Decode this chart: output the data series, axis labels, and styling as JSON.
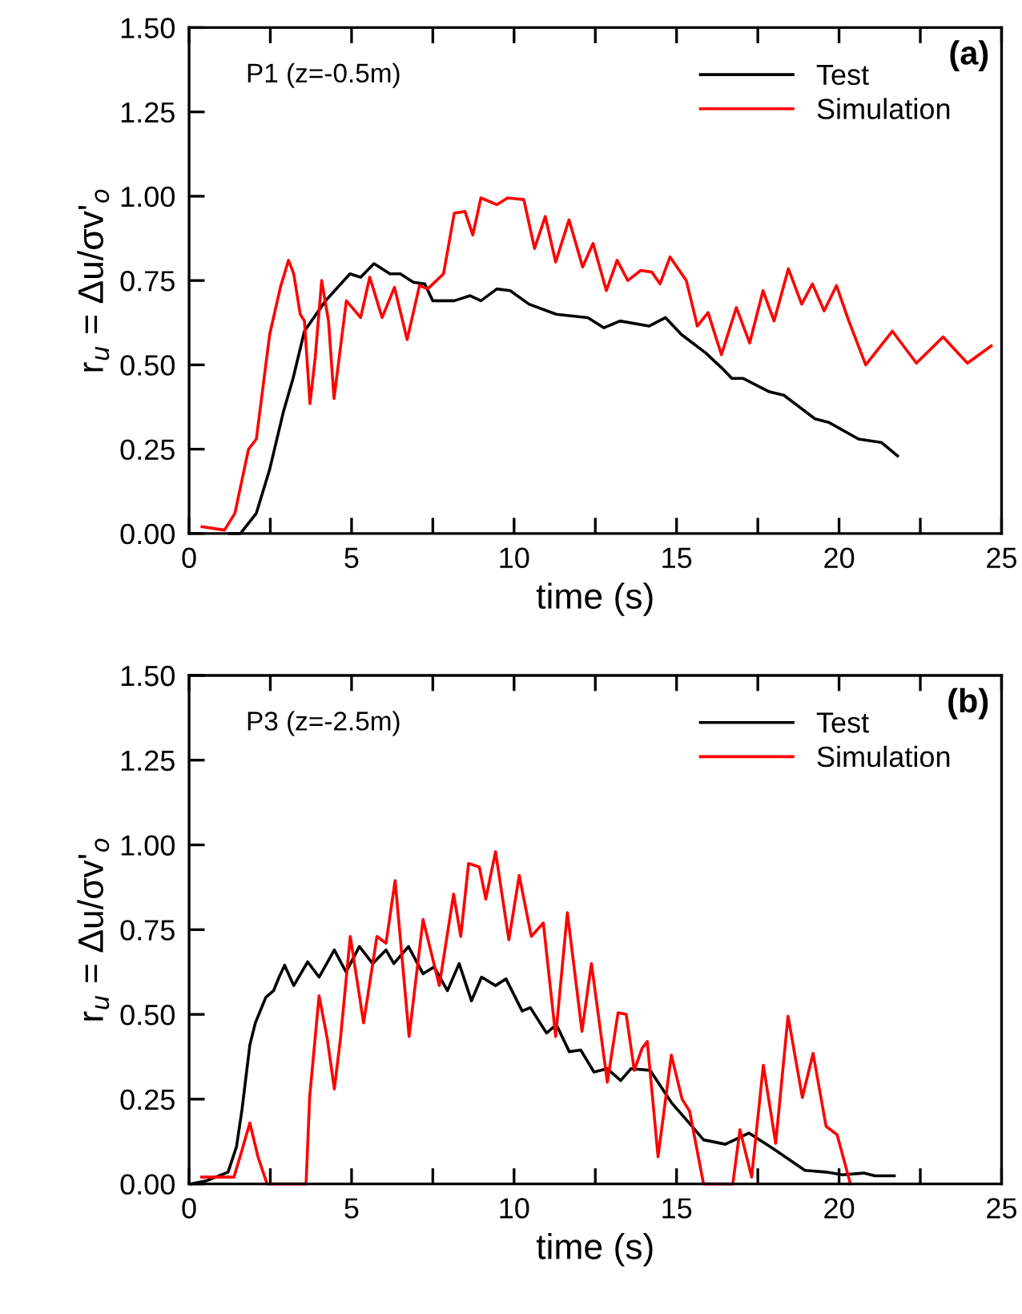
{
  "chart_data": [
    {
      "type": "line",
      "xlabel": "time (s)",
      "ylabel": "r$_{u}$ = Δu/σv'$_{o}$",
      "annotations": [
        "P1 (z=-0.5m)",
        "(a)"
      ],
      "legend": "top right",
      "grid": false,
      "marker": "none",
      "line_style": "solid",
      "xlim": [
        0,
        25
      ],
      "ylim": [
        0,
        1.5
      ],
      "xticks": [
        0,
        {
          "value": 2.5,
          "label": null
        },
        5,
        {
          "value": 7.5,
          "label": null
        },
        10,
        {
          "value": 12.5,
          "label": null
        },
        15,
        {
          "value": 17.5,
          "label": null
        },
        20,
        {
          "value": 22.5,
          "label": null
        },
        25
      ],
      "yticks": [
        {
          "value": 0,
          "label": "0.00"
        },
        {
          "value": 0.25,
          "label": "0.25"
        },
        {
          "value": 0.5,
          "label": "0.50"
        },
        {
          "value": 0.75,
          "label": "0.75"
        },
        {
          "value": 1.0,
          "label": "1.00"
        },
        {
          "value": 1.25,
          "label": "1.25"
        },
        {
          "value": 1.5,
          "label": "1.50"
        }
      ],
      "series": [
        {
          "name": "Test",
          "color": "#000000",
          "x": [
            1.25,
            1.58,
            2.07,
            2.48,
            2.9,
            3.2,
            3.55,
            4.2,
            4.95,
            5.28,
            5.69,
            6.18,
            6.5,
            6.9,
            7.25,
            7.5,
            8.16,
            8.65,
            8.98,
            9.47,
            9.88,
            10.46,
            11.3,
            12.27,
            12.76,
            13.26,
            14.16,
            14.66,
            15.15,
            15.9,
            16.4,
            16.7,
            17.04,
            17.86,
            18.3,
            19.26,
            19.67,
            20.6,
            21.3,
            21.8
          ],
          "values": [
            0.0,
            0.0,
            0.06,
            0.19,
            0.36,
            0.46,
            0.6,
            0.69,
            0.77,
            0.76,
            0.8,
            0.77,
            0.77,
            0.745,
            0.74,
            0.69,
            0.69,
            0.705,
            0.69,
            0.725,
            0.72,
            0.68,
            0.65,
            0.64,
            0.61,
            0.63,
            0.615,
            0.64,
            0.59,
            0.535,
            0.49,
            0.46,
            0.46,
            0.42,
            0.41,
            0.34,
            0.33,
            0.28,
            0.27,
            0.23
          ]
        },
        {
          "name": "Simulation",
          "color": "#ff0000",
          "x": [
            0.4,
            1.09,
            1.41,
            1.83,
            2.07,
            2.48,
            2.81,
            3.06,
            3.22,
            3.42,
            3.55,
            3.72,
            3.88,
            4.08,
            4.29,
            4.46,
            4.84,
            5.28,
            5.56,
            5.94,
            6.32,
            6.71,
            7.09,
            7.34,
            7.83,
            8.16,
            8.49,
            8.73,
            8.98,
            9.47,
            9.8,
            10.3,
            10.63,
            10.96,
            11.28,
            11.69,
            12.11,
            12.43,
            12.84,
            13.17,
            13.5,
            13.9,
            14.24,
            14.49,
            14.8,
            15.3,
            15.64,
            15.97,
            16.38,
            16.84,
            17.25,
            17.66,
            18.0,
            18.44,
            18.85,
            19.18,
            19.54,
            19.92,
            20.3,
            20.82,
            21.64,
            22.38,
            23.2,
            23.95,
            24.68
          ],
          "values": [
            0.02,
            0.01,
            0.06,
            0.25,
            0.28,
            0.59,
            0.73,
            0.81,
            0.77,
            0.65,
            0.63,
            0.385,
            0.52,
            0.75,
            0.63,
            0.4,
            0.69,
            0.64,
            0.76,
            0.64,
            0.73,
            0.575,
            0.735,
            0.725,
            0.77,
            0.95,
            0.955,
            0.885,
            0.995,
            0.975,
            0.995,
            0.99,
            0.845,
            0.94,
            0.805,
            0.93,
            0.79,
            0.86,
            0.72,
            0.81,
            0.75,
            0.78,
            0.775,
            0.74,
            0.82,
            0.75,
            0.615,
            0.655,
            0.53,
            0.67,
            0.565,
            0.72,
            0.63,
            0.785,
            0.68,
            0.74,
            0.66,
            0.735,
            0.63,
            0.5,
            0.6,
            0.505,
            0.583,
            0.505,
            0.556
          ]
        }
      ]
    },
    {
      "type": "line",
      "xlabel": "time (s)",
      "ylabel": "r$_{u}$ = Δu/σv'$_{o}$",
      "annotations": [
        "P3 (z=-2.5m)",
        "(b)"
      ],
      "legend": "top right",
      "grid": false,
      "marker": "none",
      "line_style": "solid",
      "xlim": [
        0,
        25
      ],
      "ylim": [
        0,
        1.5
      ],
      "xticks": [
        0,
        {
          "value": 2.5,
          "label": null
        },
        5,
        {
          "value": 7.5,
          "label": null
        },
        10,
        {
          "value": 12.5,
          "label": null
        },
        15,
        {
          "value": 17.5,
          "label": null
        },
        20,
        {
          "value": 22.5,
          "label": null
        },
        25
      ],
      "yticks": [
        {
          "value": 0,
          "label": "0.00"
        },
        {
          "value": 0.25,
          "label": "0.25"
        },
        {
          "value": 0.5,
          "label": "0.50"
        },
        {
          "value": 0.75,
          "label": "0.75"
        },
        {
          "value": 1.0,
          "label": "1.00"
        },
        {
          "value": 1.25,
          "label": "1.25"
        },
        {
          "value": 1.5,
          "label": "1.50"
        }
      ],
      "series": [
        {
          "name": "Test",
          "color": "#000000",
          "x": [
            0.07,
            0.56,
            1.2,
            1.46,
            1.63,
            1.87,
            2.04,
            2.36,
            2.6,
            2.77,
            2.94,
            3.22,
            3.65,
            4.0,
            4.47,
            4.83,
            5.24,
            5.65,
            6.06,
            6.3,
            6.75,
            7.2,
            7.54,
            7.95,
            8.31,
            8.69,
            9.0,
            9.43,
            9.75,
            10.25,
            10.5,
            11.0,
            11.3,
            11.7,
            12.05,
            12.46,
            12.87,
            13.28,
            13.6,
            14.19,
            14.84,
            15.34,
            15.83,
            16.5,
            17.23,
            17.96,
            18.95,
            19.6,
            20.1,
            20.76,
            21.1,
            21.7
          ],
          "values": [
            0.0,
            0.01,
            0.035,
            0.11,
            0.22,
            0.41,
            0.475,
            0.55,
            0.57,
            0.61,
            0.645,
            0.585,
            0.655,
            0.61,
            0.69,
            0.625,
            0.7,
            0.65,
            0.69,
            0.65,
            0.7,
            0.62,
            0.64,
            0.57,
            0.65,
            0.54,
            0.61,
            0.585,
            0.605,
            0.51,
            0.52,
            0.445,
            0.47,
            0.39,
            0.395,
            0.33,
            0.34,
            0.305,
            0.34,
            0.335,
            0.24,
            0.185,
            0.13,
            0.117,
            0.15,
            0.105,
            0.04,
            0.035,
            0.027,
            0.032,
            0.024,
            0.024
          ]
        },
        {
          "name": "Simulation",
          "color": "#ff0000",
          "x": [
            0.39,
            1.38,
            1.63,
            1.87,
            2.12,
            2.4,
            3.6,
            3.71,
            4.0,
            4.25,
            4.47,
            4.66,
            4.96,
            5.37,
            5.78,
            6.06,
            6.34,
            6.77,
            7.2,
            7.7,
            8.14,
            8.36,
            8.6,
            8.93,
            9.13,
            9.43,
            9.84,
            10.16,
            10.53,
            10.9,
            11.28,
            11.64,
            12.09,
            12.38,
            12.87,
            13.2,
            13.45,
            13.7,
            13.94,
            14.1,
            14.43,
            14.84,
            15.17,
            15.4,
            15.83,
            16.73,
            16.95,
            17.31,
            17.67,
            18.05,
            18.43,
            18.87,
            19.2,
            19.6,
            19.94,
            20.35
          ],
          "values": [
            0.02,
            0.02,
            0.1,
            0.18,
            0.08,
            0.0,
            0.0,
            0.255,
            0.555,
            0.43,
            0.28,
            0.43,
            0.73,
            0.475,
            0.73,
            0.71,
            0.895,
            0.435,
            0.78,
            0.585,
            0.855,
            0.73,
            0.945,
            0.935,
            0.84,
            0.98,
            0.72,
            0.91,
            0.73,
            0.77,
            0.435,
            0.8,
            0.45,
            0.65,
            0.3,
            0.505,
            0.5,
            0.335,
            0.4,
            0.42,
            0.08,
            0.38,
            0.25,
            0.215,
            0.0,
            0.0,
            0.16,
            0.02,
            0.35,
            0.12,
            0.495,
            0.255,
            0.385,
            0.17,
            0.145,
            0.0
          ]
        }
      ]
    }
  ]
}
